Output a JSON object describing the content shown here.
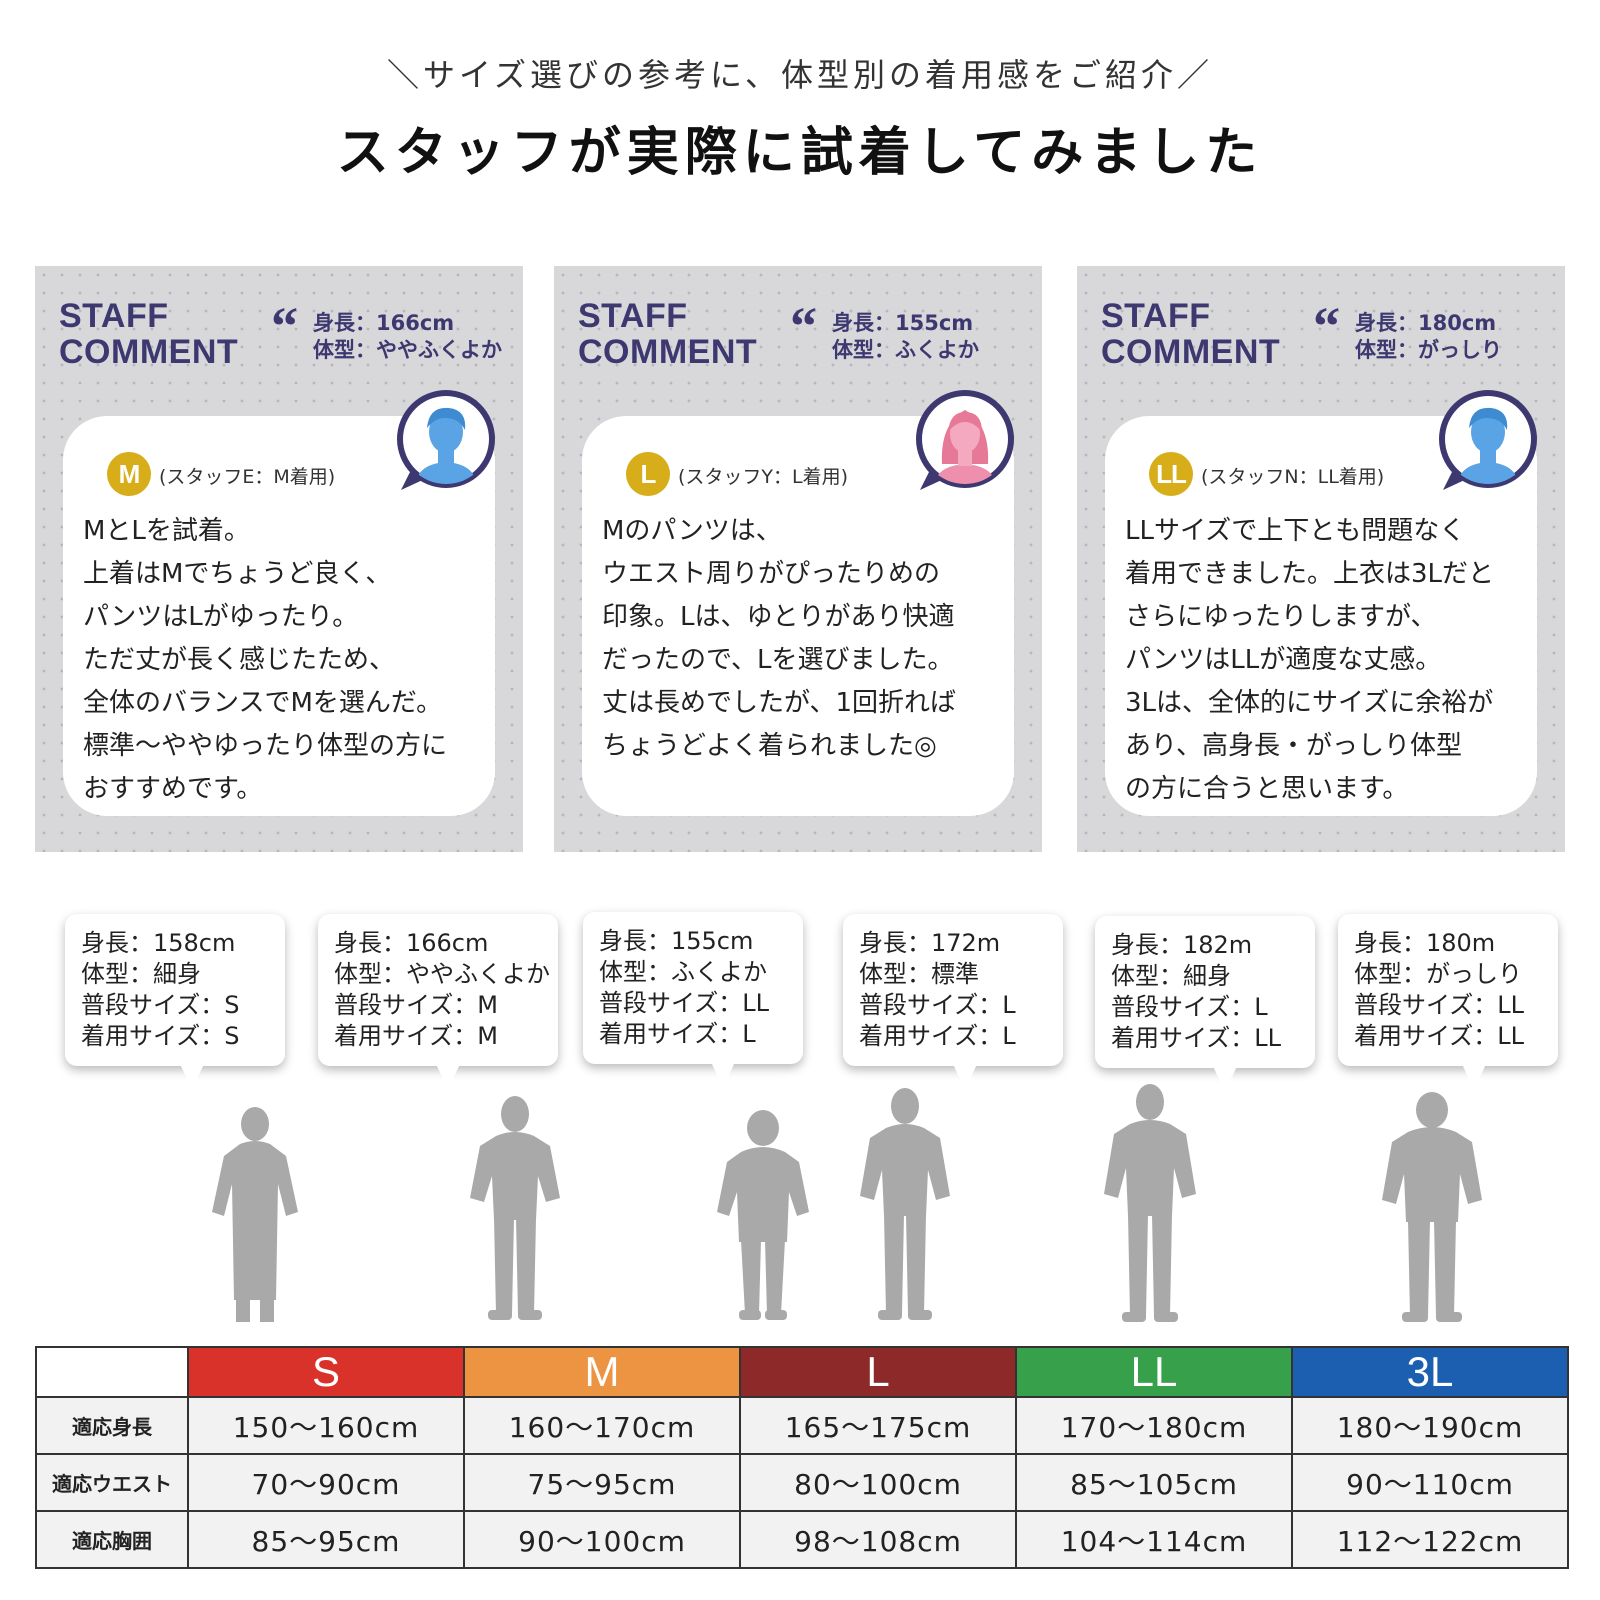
{
  "header": {
    "subtitle": "＼サイズ選びの参考に、体型別の着用感をご紹介／",
    "title": "スタッフが実際に試着してみました"
  },
  "staff_cards": [
    {
      "title_line1": "STAFF",
      "title_line2": "COMMENT",
      "height": "身長：166cm",
      "body_type": "体型：ややふくよか",
      "size_badge": "M",
      "staff_label": "(スタッフE：M着用)",
      "avatar": "male-avatar-icon",
      "avatar_color": "#5aa4e6",
      "comment_lines": [
        "MとLを試着。",
        "上着はMでちょうど良く、",
        "パンツはLがゆったり。",
        "ただ丈が長く感じたため、",
        "全体のバランスでMを選んだ。",
        "標準〜ややゆったり体型の方に",
        "おすすめです。"
      ]
    },
    {
      "title_line1": "STAFF",
      "title_line2": "COMMENT",
      "height": "身長：155cm",
      "body_type": "体型：ふくよか",
      "size_badge": "L",
      "staff_label": "(スタッフY：L着用)",
      "avatar": "female-avatar-icon",
      "avatar_color": "#ee8fae",
      "comment_lines": [
        "Mのパンツは、",
        "ウエスト周りがぴったりめの",
        "印象。Lは、ゆとりがあり快適",
        "だったので、Lを選びました。",
        "丈は長めでしたが、1回折れば",
        "ちょうどよく着られました◎"
      ]
    },
    {
      "title_line1": "STAFF",
      "title_line2": "COMMENT",
      "height": "身長：180cm",
      "body_type": "体型：がっしり",
      "size_badge": "LL",
      "staff_label": "(スタッフN：LL着用)",
      "avatar": "male-avatar-icon",
      "avatar_color": "#5aa4e6",
      "comment_lines": [
        "LLサイズで上下とも問題なく",
        "着用できました。上衣は3Lだと",
        "さらにゆったりしますが、",
        "パンツはLLが適度な丈感。",
        "3Lは、全体的にサイズに余裕が",
        "あり、高身長・がっしり体型",
        "の方に合うと思います。"
      ]
    }
  ],
  "models": [
    {
      "height": "身長：158cm",
      "body_type": "体型：細身",
      "usual_size": "普段サイズ：S",
      "worn_size": "着用サイズ：S"
    },
    {
      "height": "身長：166cm",
      "body_type": "体型：ややふくよか",
      "usual_size": "普段サイズ：M",
      "worn_size": "着用サイズ：M"
    },
    {
      "height": "身長：155cm",
      "body_type": "体型：ふくよか",
      "usual_size": "普段サイズ：LL",
      "worn_size": "着用サイズ：L"
    },
    {
      "height": "身長：172m",
      "body_type": "体型：標準",
      "usual_size": "普段サイズ：L",
      "worn_size": "着用サイズ：L"
    },
    {
      "height": "身長：182m",
      "body_type": "体型：細身",
      "usual_size": "普段サイズ：L",
      "worn_size": "着用サイズ：LL"
    },
    {
      "height": "身長：180m",
      "body_type": "体型：がっしり",
      "usual_size": "普段サイズ：LL",
      "worn_size": "着用サイズ：LL"
    }
  ],
  "size_table": {
    "columns": [
      {
        "label": "S",
        "color": "#d8322b"
      },
      {
        "label": "M",
        "color": "#ec9442"
      },
      {
        "label": "L",
        "color": "#8d2a29"
      },
      {
        "label": "LL",
        "color": "#36a14a"
      },
      {
        "label": "3L",
        "color": "#1c5eb0"
      }
    ],
    "rows": [
      {
        "label": "適応身長",
        "values": [
          "150〜160cm",
          "160〜170cm",
          "165〜175cm",
          "170〜180cm",
          "180〜190cm"
        ]
      },
      {
        "label": "適応ウエスト",
        "values": [
          "70〜90cm",
          "75〜95cm",
          "80〜100cm",
          "85〜105cm",
          "90〜110cm"
        ]
      },
      {
        "label": "適応胸囲",
        "values": [
          "85〜95cm",
          "90〜100cm",
          "98〜108cm",
          "104〜114cm",
          "112〜122cm"
        ]
      }
    ]
  }
}
